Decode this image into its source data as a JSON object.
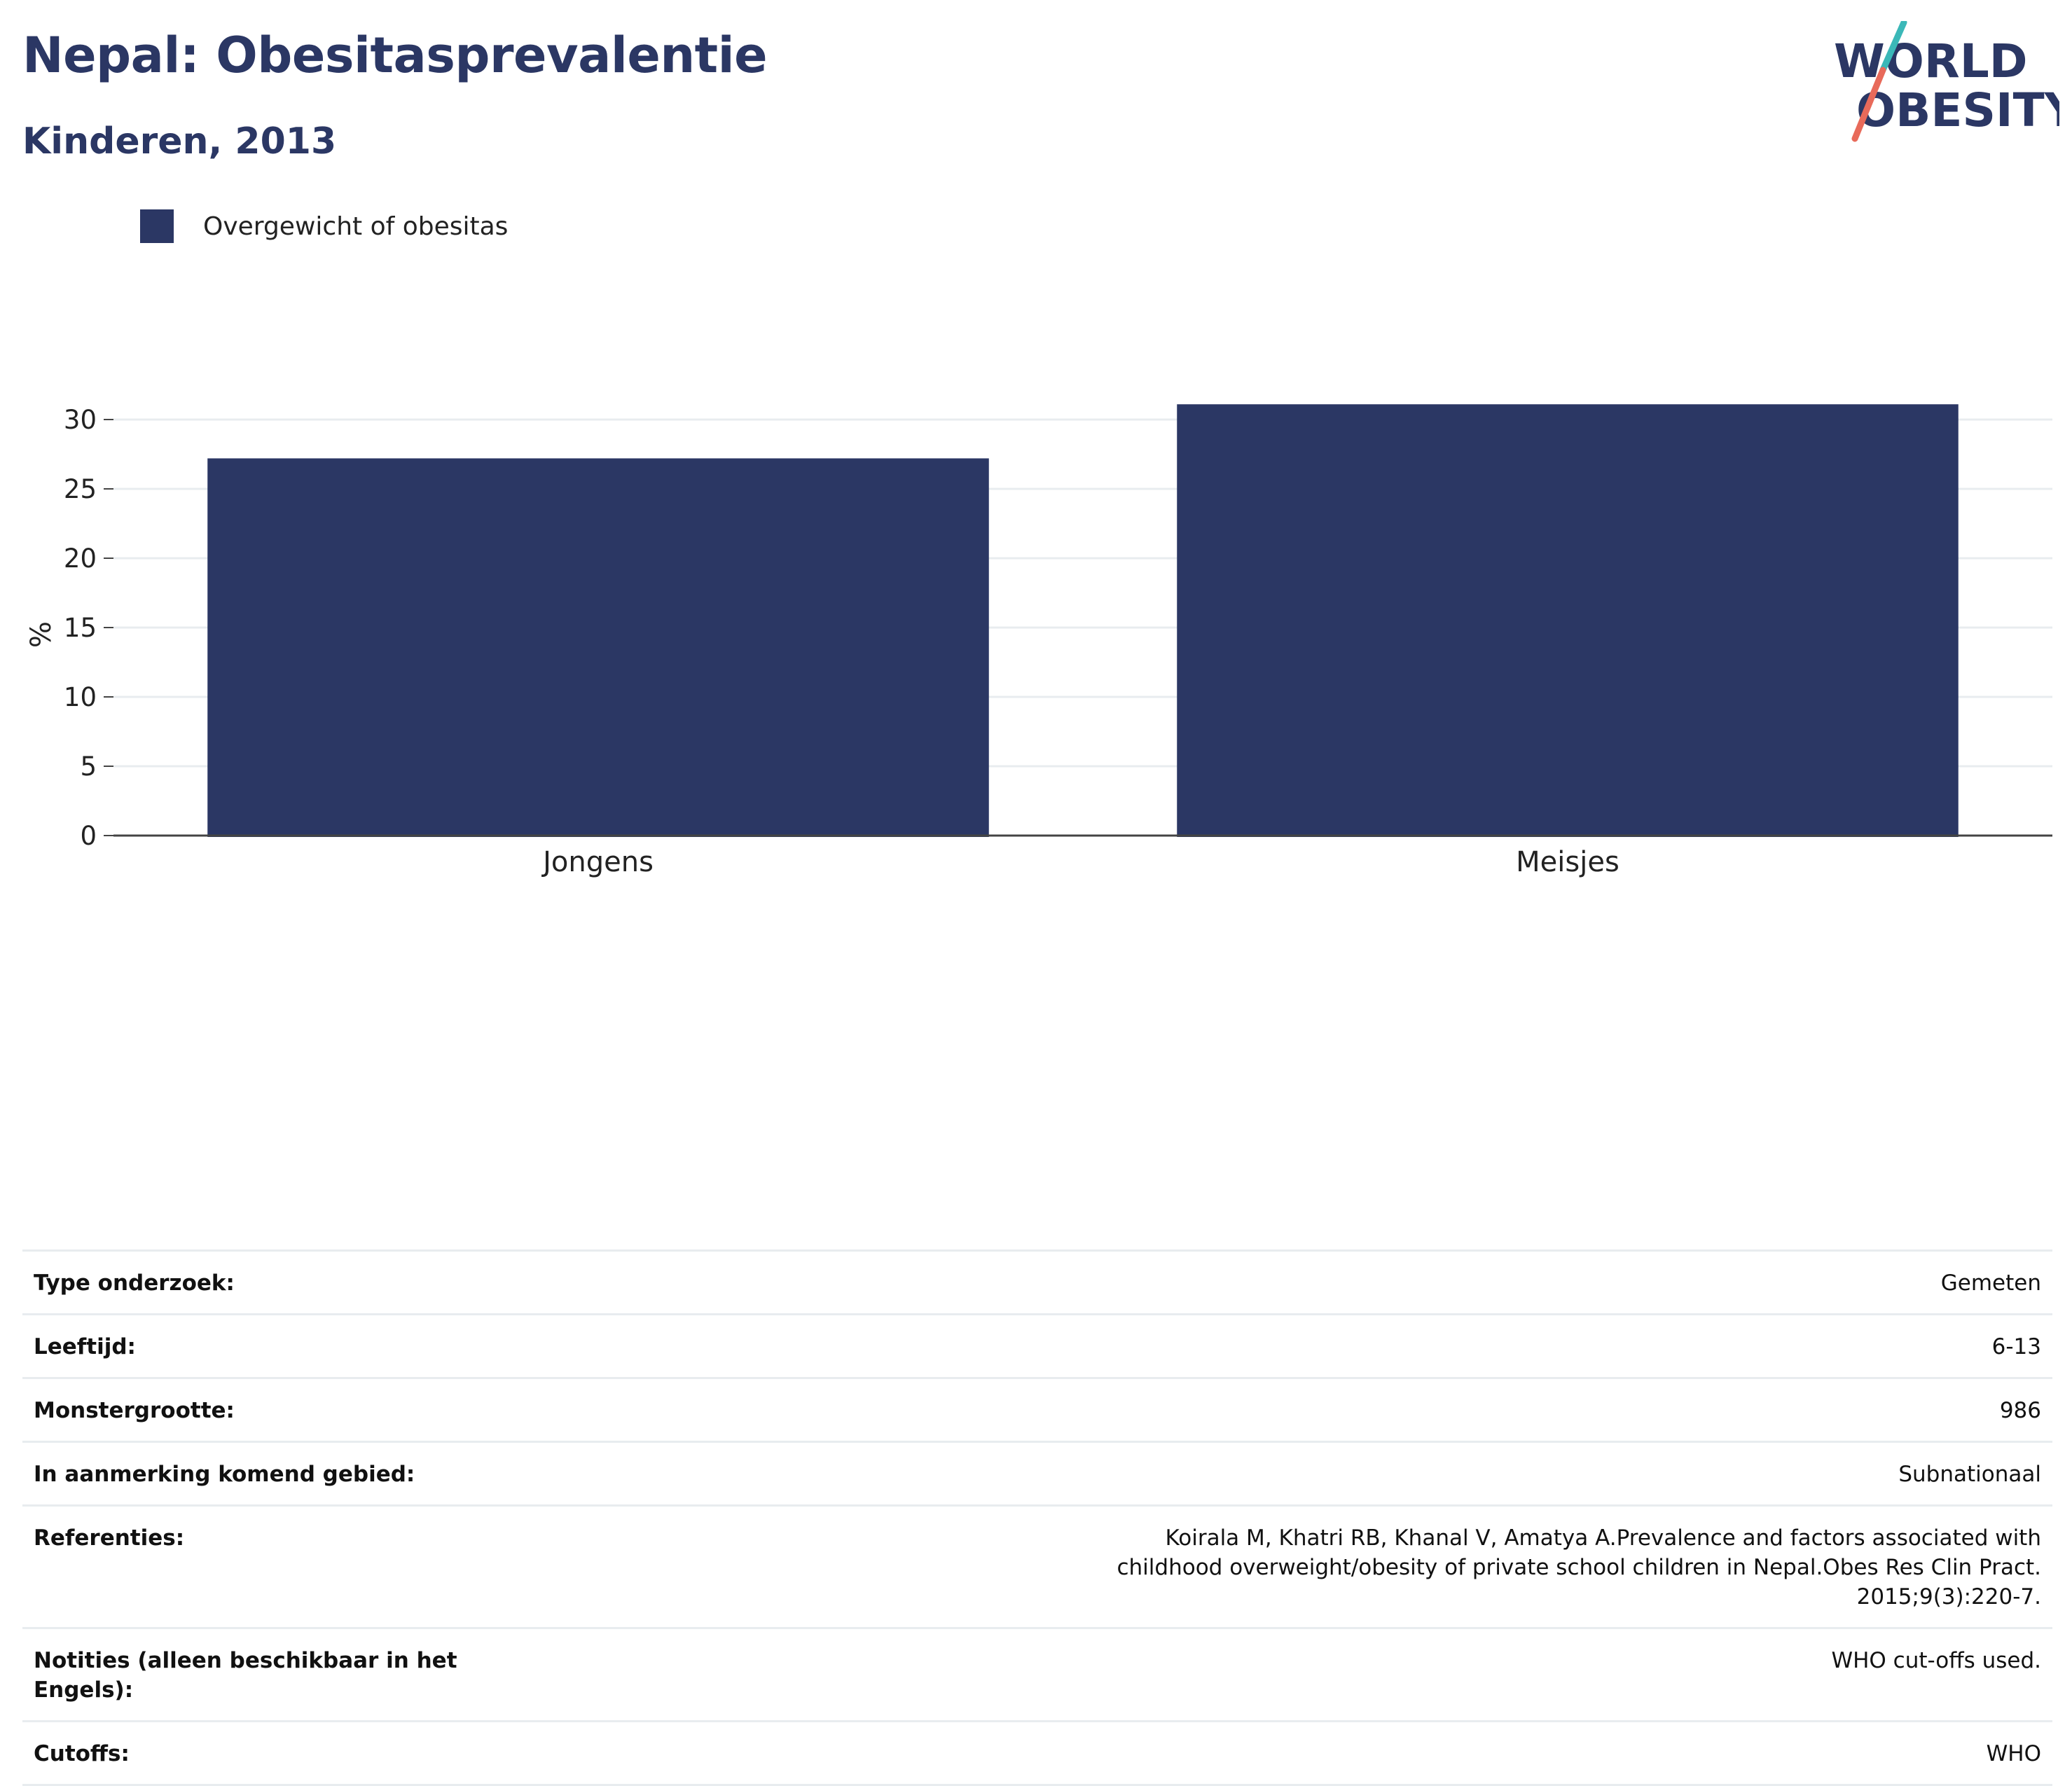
{
  "header": {
    "title": "Nepal: Obesitasprevalentie",
    "subtitle": "Kinderen, 2013"
  },
  "logo": {
    "line1": "WORLD",
    "line2": "OBESITY",
    "colors": {
      "text": "#2b3764",
      "slash_top": "#3bb8b8",
      "slash_bottom": "#e86a5a"
    }
  },
  "legend": {
    "items": [
      {
        "label": "Overgewicht of obesitas",
        "color": "#2b3764"
      }
    ]
  },
  "chart_data": {
    "type": "bar",
    "categories": [
      "Jongens",
      "Meisjes"
    ],
    "series": [
      {
        "name": "Overgewicht of obesitas",
        "values": [
          27.2,
          31.1
        ],
        "color": "#2b3764"
      }
    ],
    "ylabel": "%",
    "xlabel": "",
    "ylim": [
      0,
      33
    ],
    "yticks": [
      0,
      5,
      10,
      15,
      20,
      25,
      30
    ],
    "grid": true,
    "legend_position": "top-left"
  },
  "metadata": [
    {
      "key": "Type onderzoek:",
      "value": "Gemeten"
    },
    {
      "key": "Leeftijd:",
      "value": "6-13"
    },
    {
      "key": "Monstergrootte:",
      "value": "986"
    },
    {
      "key": "In aanmerking komend gebied:",
      "value": "Subnationaal"
    },
    {
      "key": "Referenties:",
      "value": "Koirala M, Khatri RB, Khanal V, Amatya A.Prevalence and factors associated with childhood overweight/obesity of private school children in Nepal.Obes Res Clin Pract. 2015;9(3):220-7."
    },
    {
      "key": "Notities (alleen beschikbaar in het Engels):",
      "value": "WHO cut-offs used."
    },
    {
      "key": "Cutoffs:",
      "value": "WHO"
    }
  ]
}
